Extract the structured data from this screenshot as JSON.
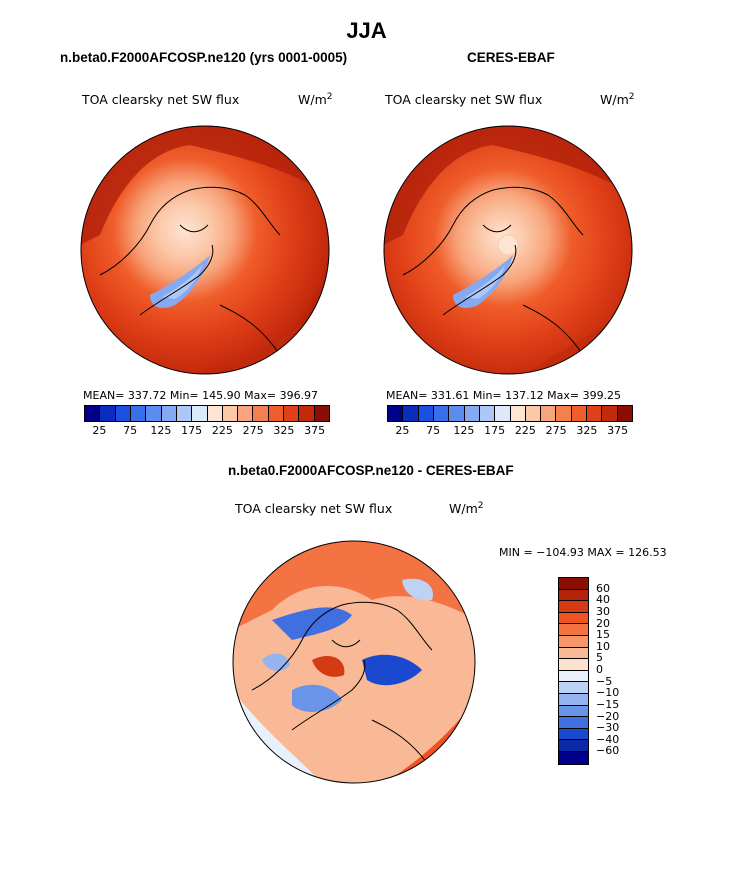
{
  "page_title": "JJA",
  "chart_data": [
    {
      "type": "heatmap",
      "projection": "polar-stereographic-north",
      "subtitle": "n.beta0.F2000AFCOSP.ne120 (yrs 0001-0005)",
      "title": "TOA clearsky net SW flux",
      "units": "W/m",
      "units_sup": "2",
      "stats": "MEAN= 337.72   Min= 145.90   Max= 396.97",
      "colorbar": {
        "orientation": "horizontal",
        "tick_labels": [
          "25",
          "75",
          "125",
          "175",
          "225",
          "275",
          "325",
          "375"
        ]
      }
    },
    {
      "type": "heatmap",
      "projection": "polar-stereographic-north",
      "subtitle": "CERES-EBAF",
      "title": "TOA clearsky net SW flux",
      "units": "W/m",
      "units_sup": "2",
      "stats": "MEAN= 331.61   Min= 137.12   Max= 399.25",
      "colorbar": {
        "orientation": "horizontal",
        "tick_labels": [
          "25",
          "75",
          "125",
          "175",
          "225",
          "275",
          "325",
          "375"
        ]
      }
    },
    {
      "type": "heatmap",
      "projection": "polar-stereographic-north",
      "subtitle": "n.beta0.F2000AFCOSP.ne120 - CERES-EBAF",
      "title": "TOA clearsky net SW flux",
      "units": "W/m",
      "units_sup": "2",
      "stats": "MIN = −104.93  MAX = 126.53",
      "colorbar": {
        "orientation": "vertical",
        "tick_labels": [
          "60",
          "40",
          "30",
          "20",
          "15",
          "10",
          "5",
          "0",
          "−5",
          "−10",
          "−15",
          "−20",
          "−30",
          "−40",
          "−60"
        ]
      }
    }
  ],
  "colors": {
    "seq": [
      "#00008b",
      "#0a2dbd",
      "#1a4fe0",
      "#3a6ee8",
      "#5e8cee",
      "#86aaf2",
      "#adc8f6",
      "#dce9fa",
      "#fde4d3",
      "#fbc8a8",
      "#f8a47c",
      "#f5804f",
      "#ef5d2a",
      "#e04018",
      "#c32a0c",
      "#8b0e04"
    ],
    "div": [
      "#8b0e04",
      "#b3220a",
      "#d43a14",
      "#ef5322",
      "#f47343",
      "#f79668",
      "#f9b996",
      "#fde1cf",
      "#e8f1fb",
      "#bcd3f4",
      "#93b4ee",
      "#6a94e8",
      "#3f6fe0",
      "#1a49d0",
      "#0a2aa8",
      "#00008b"
    ]
  }
}
